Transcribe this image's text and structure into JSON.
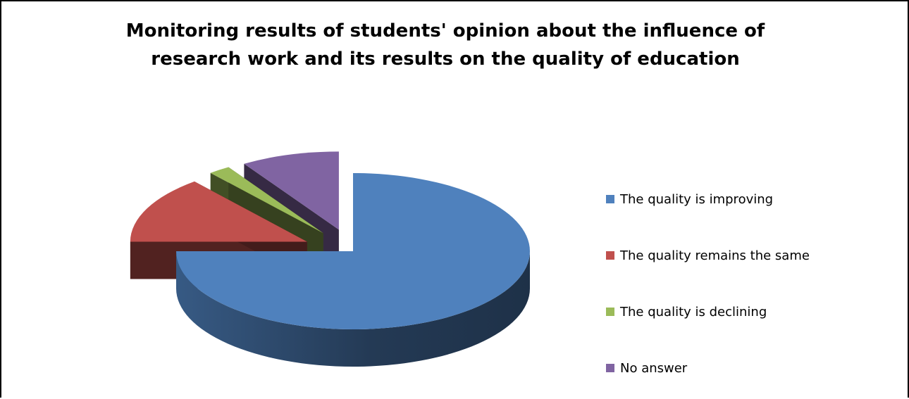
{
  "chart_data": {
    "type": "pie",
    "title": "Monitoring results of students' opinion about the influence of research work and its results on the quality of education",
    "title_lines": [
      "Monitoring results of students' opinion about the influence of",
      "research work and its results on the quality of education"
    ],
    "labels": [
      "The quality is improving",
      "The quality remains the same",
      "The quality is declining",
      "No answer"
    ],
    "values": [
      75,
      14,
      2,
      9
    ],
    "colors": [
      "#4f81bd",
      "#c0504d",
      "#9bbb59",
      "#8064a2"
    ],
    "exploded": [
      false,
      true,
      true,
      true
    ],
    "legend_position": "right",
    "three_d": true
  }
}
